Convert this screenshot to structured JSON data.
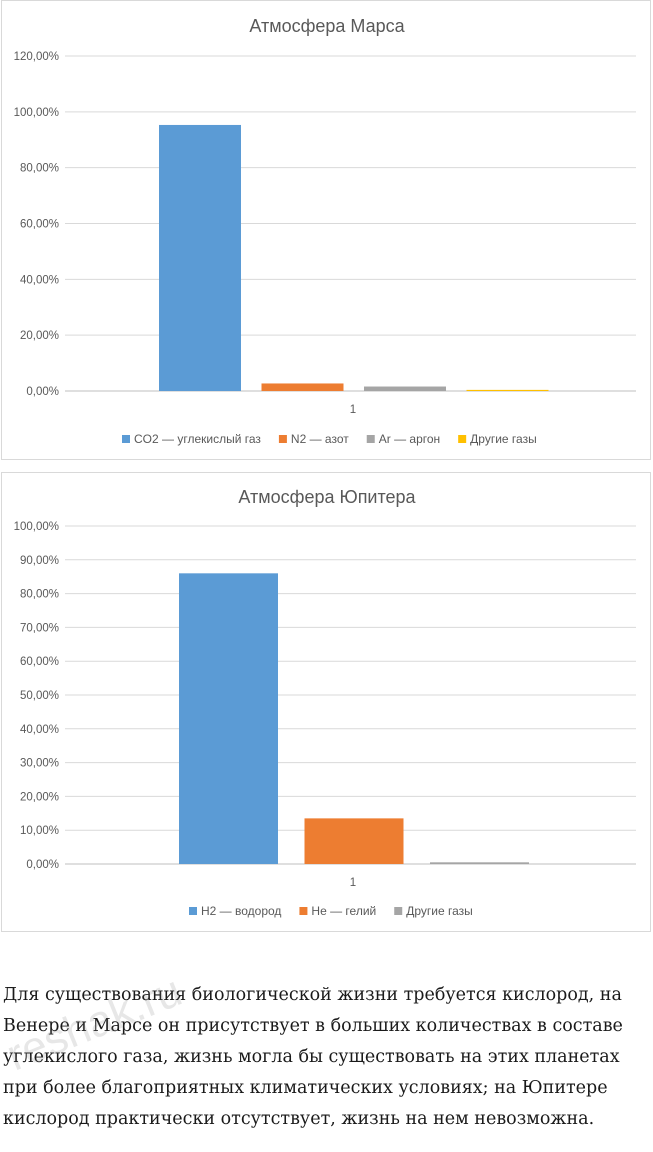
{
  "chart_data": [
    {
      "type": "bar",
      "title": "Атмосфера Марса",
      "categories": [
        "1"
      ],
      "yticks": [
        "0,00%",
        "20,00%",
        "40,00%",
        "60,00%",
        "80,00%",
        "100,00%",
        "120,00%"
      ],
      "ylim": [
        0,
        120
      ],
      "grid": true,
      "legend_position": "bottom",
      "series": [
        {
          "name": "CO2 — углекислый газ",
          "values": [
            95.3
          ],
          "color": "#5b9bd5"
        },
        {
          "name": "N2 — азот",
          "values": [
            2.7
          ],
          "color": "#ed7d31"
        },
        {
          "name": "Ar — аргон",
          "values": [
            1.6
          ],
          "color": "#a5a5a5"
        },
        {
          "name": "Другие газы",
          "values": [
            0.4
          ],
          "color": "#ffc000"
        }
      ]
    },
    {
      "type": "bar",
      "title": "Атмосфера Юпитера",
      "categories": [
        "1"
      ],
      "yticks": [
        "0,00%",
        "10,00%",
        "20,00%",
        "30,00%",
        "40,00%",
        "50,00%",
        "60,00%",
        "70,00%",
        "80,00%",
        "90,00%",
        "100,00%"
      ],
      "ylim": [
        0,
        100
      ],
      "grid": true,
      "legend_position": "bottom",
      "series": [
        {
          "name": "H2 — водород",
          "values": [
            86
          ],
          "color": "#5b9bd5"
        },
        {
          "name": "He — гелий",
          "values": [
            13.5
          ],
          "color": "#ed7d31"
        },
        {
          "name": "Другие газы",
          "values": [
            0.5
          ],
          "color": "#a5a5a5"
        }
      ]
    }
  ],
  "text": {
    "lines": [
      "Для существования биологической жизни требуется кислород, на",
      "Венере и Марсе он присутствует в больших количествах в составе",
      "углекислого газа, жизнь могла бы существовать на этих планетах",
      "при более благоприятных климатических условиях; на Юпитере",
      "кислород практически отсутствует, жизнь на нем невозможна."
    ],
    "watermark": "reshak.ru"
  }
}
